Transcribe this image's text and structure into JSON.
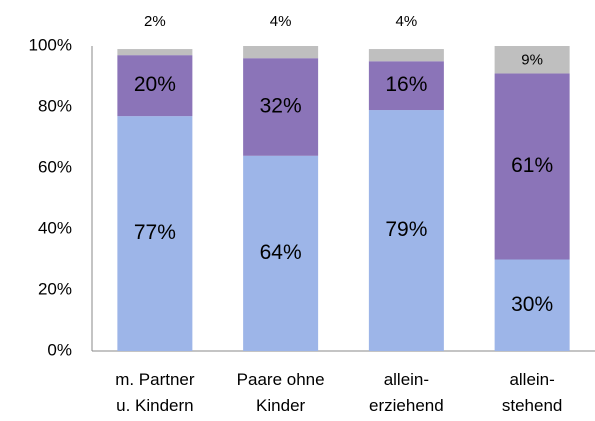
{
  "chart_data": {
    "type": "stacked_bar",
    "categories": [
      "m. Partner\nu. Kindern",
      "Paare ohne\nKinder",
      "allein-\nerziehend",
      "allein-\nstehend"
    ],
    "series": [
      {
        "color": "#9db5e8",
        "values": [
          77,
          64,
          79,
          30
        ],
        "value_labels": [
          "77%",
          "64%",
          "79%",
          "30%"
        ]
      },
      {
        "color": "#8b74b8",
        "values": [
          20,
          32,
          16,
          61
        ],
        "value_labels": [
          "20%",
          "32%",
          "16%",
          "61%"
        ]
      },
      {
        "color": "#bfbfbf",
        "values": [
          2,
          4,
          4,
          9
        ],
        "value_labels": [
          "2%",
          "4%",
          "4%",
          "9%"
        ]
      }
    ],
    "ylim": [
      0,
      100
    ],
    "yticks": [
      {
        "value": 0,
        "label": "0%"
      },
      {
        "value": 20,
        "label": "20%"
      },
      {
        "value": 40,
        "label": "40%"
      },
      {
        "value": 60,
        "label": "60%"
      },
      {
        "value": 80,
        "label": "80%"
      },
      {
        "value": 100,
        "label": "100%"
      }
    ]
  }
}
